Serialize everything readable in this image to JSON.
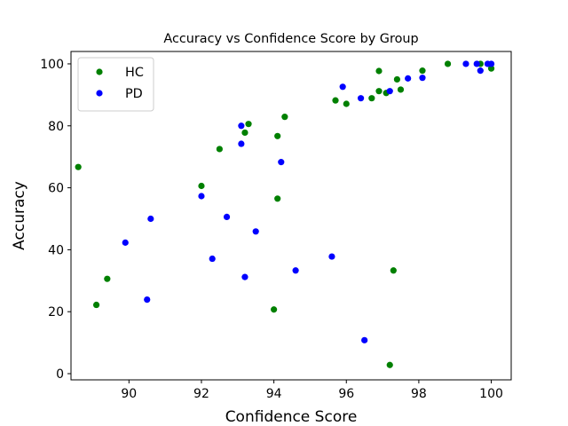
{
  "chart_data": {
    "type": "scatter",
    "title": "Accuracy vs Confidence Score by Group",
    "xlabel": "Confidence Score",
    "ylabel": "Accuracy",
    "xlim": [
      88.4,
      100.55
    ],
    "ylim": [
      -2,
      104
    ],
    "xticks": [
      90,
      92,
      94,
      96,
      98,
      100
    ],
    "yticks": [
      0,
      20,
      40,
      60,
      80,
      100
    ],
    "grid": false,
    "legend": "top-left",
    "series": [
      {
        "name": "HC",
        "color": "#008000",
        "points": [
          [
            88.6,
            66.7
          ],
          [
            89.1,
            22.2
          ],
          [
            89.4,
            30.6
          ],
          [
            92.0,
            60.6
          ],
          [
            92.5,
            72.5
          ],
          [
            93.2,
            77.8
          ],
          [
            93.3,
            80.6
          ],
          [
            94.0,
            20.7
          ],
          [
            94.1,
            76.7
          ],
          [
            94.1,
            56.5
          ],
          [
            94.3,
            82.9
          ],
          [
            95.7,
            88.2
          ],
          [
            96.0,
            87.1
          ],
          [
            96.7,
            88.9
          ],
          [
            96.9,
            97.7
          ],
          [
            96.9,
            91.2
          ],
          [
            97.1,
            90.6
          ],
          [
            97.2,
            2.8
          ],
          [
            97.3,
            33.3
          ],
          [
            97.4,
            95.0
          ],
          [
            97.5,
            91.7
          ],
          [
            98.1,
            97.8
          ],
          [
            98.8,
            100.0
          ],
          [
            99.7,
            100.0
          ],
          [
            100.0,
            98.5
          ]
        ]
      },
      {
        "name": "PD",
        "color": "#0000ff",
        "points": [
          [
            89.9,
            42.3
          ],
          [
            90.5,
            23.9
          ],
          [
            90.6,
            50.0
          ],
          [
            92.0,
            57.3
          ],
          [
            92.3,
            37.1
          ],
          [
            92.7,
            50.6
          ],
          [
            93.1,
            80.0
          ],
          [
            93.1,
            74.2
          ],
          [
            93.2,
            31.2
          ],
          [
            93.5,
            45.9
          ],
          [
            94.2,
            68.3
          ],
          [
            94.6,
            33.3
          ],
          [
            95.6,
            37.8
          ],
          [
            95.9,
            92.6
          ],
          [
            96.4,
            88.9
          ],
          [
            96.5,
            10.8
          ],
          [
            97.2,
            91.2
          ],
          [
            97.7,
            95.3
          ],
          [
            98.1,
            95.5
          ],
          [
            99.3,
            100.0
          ],
          [
            99.6,
            100.0
          ],
          [
            99.7,
            97.8
          ],
          [
            99.9,
            100.0
          ],
          [
            100.0,
            100.0
          ]
        ]
      }
    ]
  }
}
